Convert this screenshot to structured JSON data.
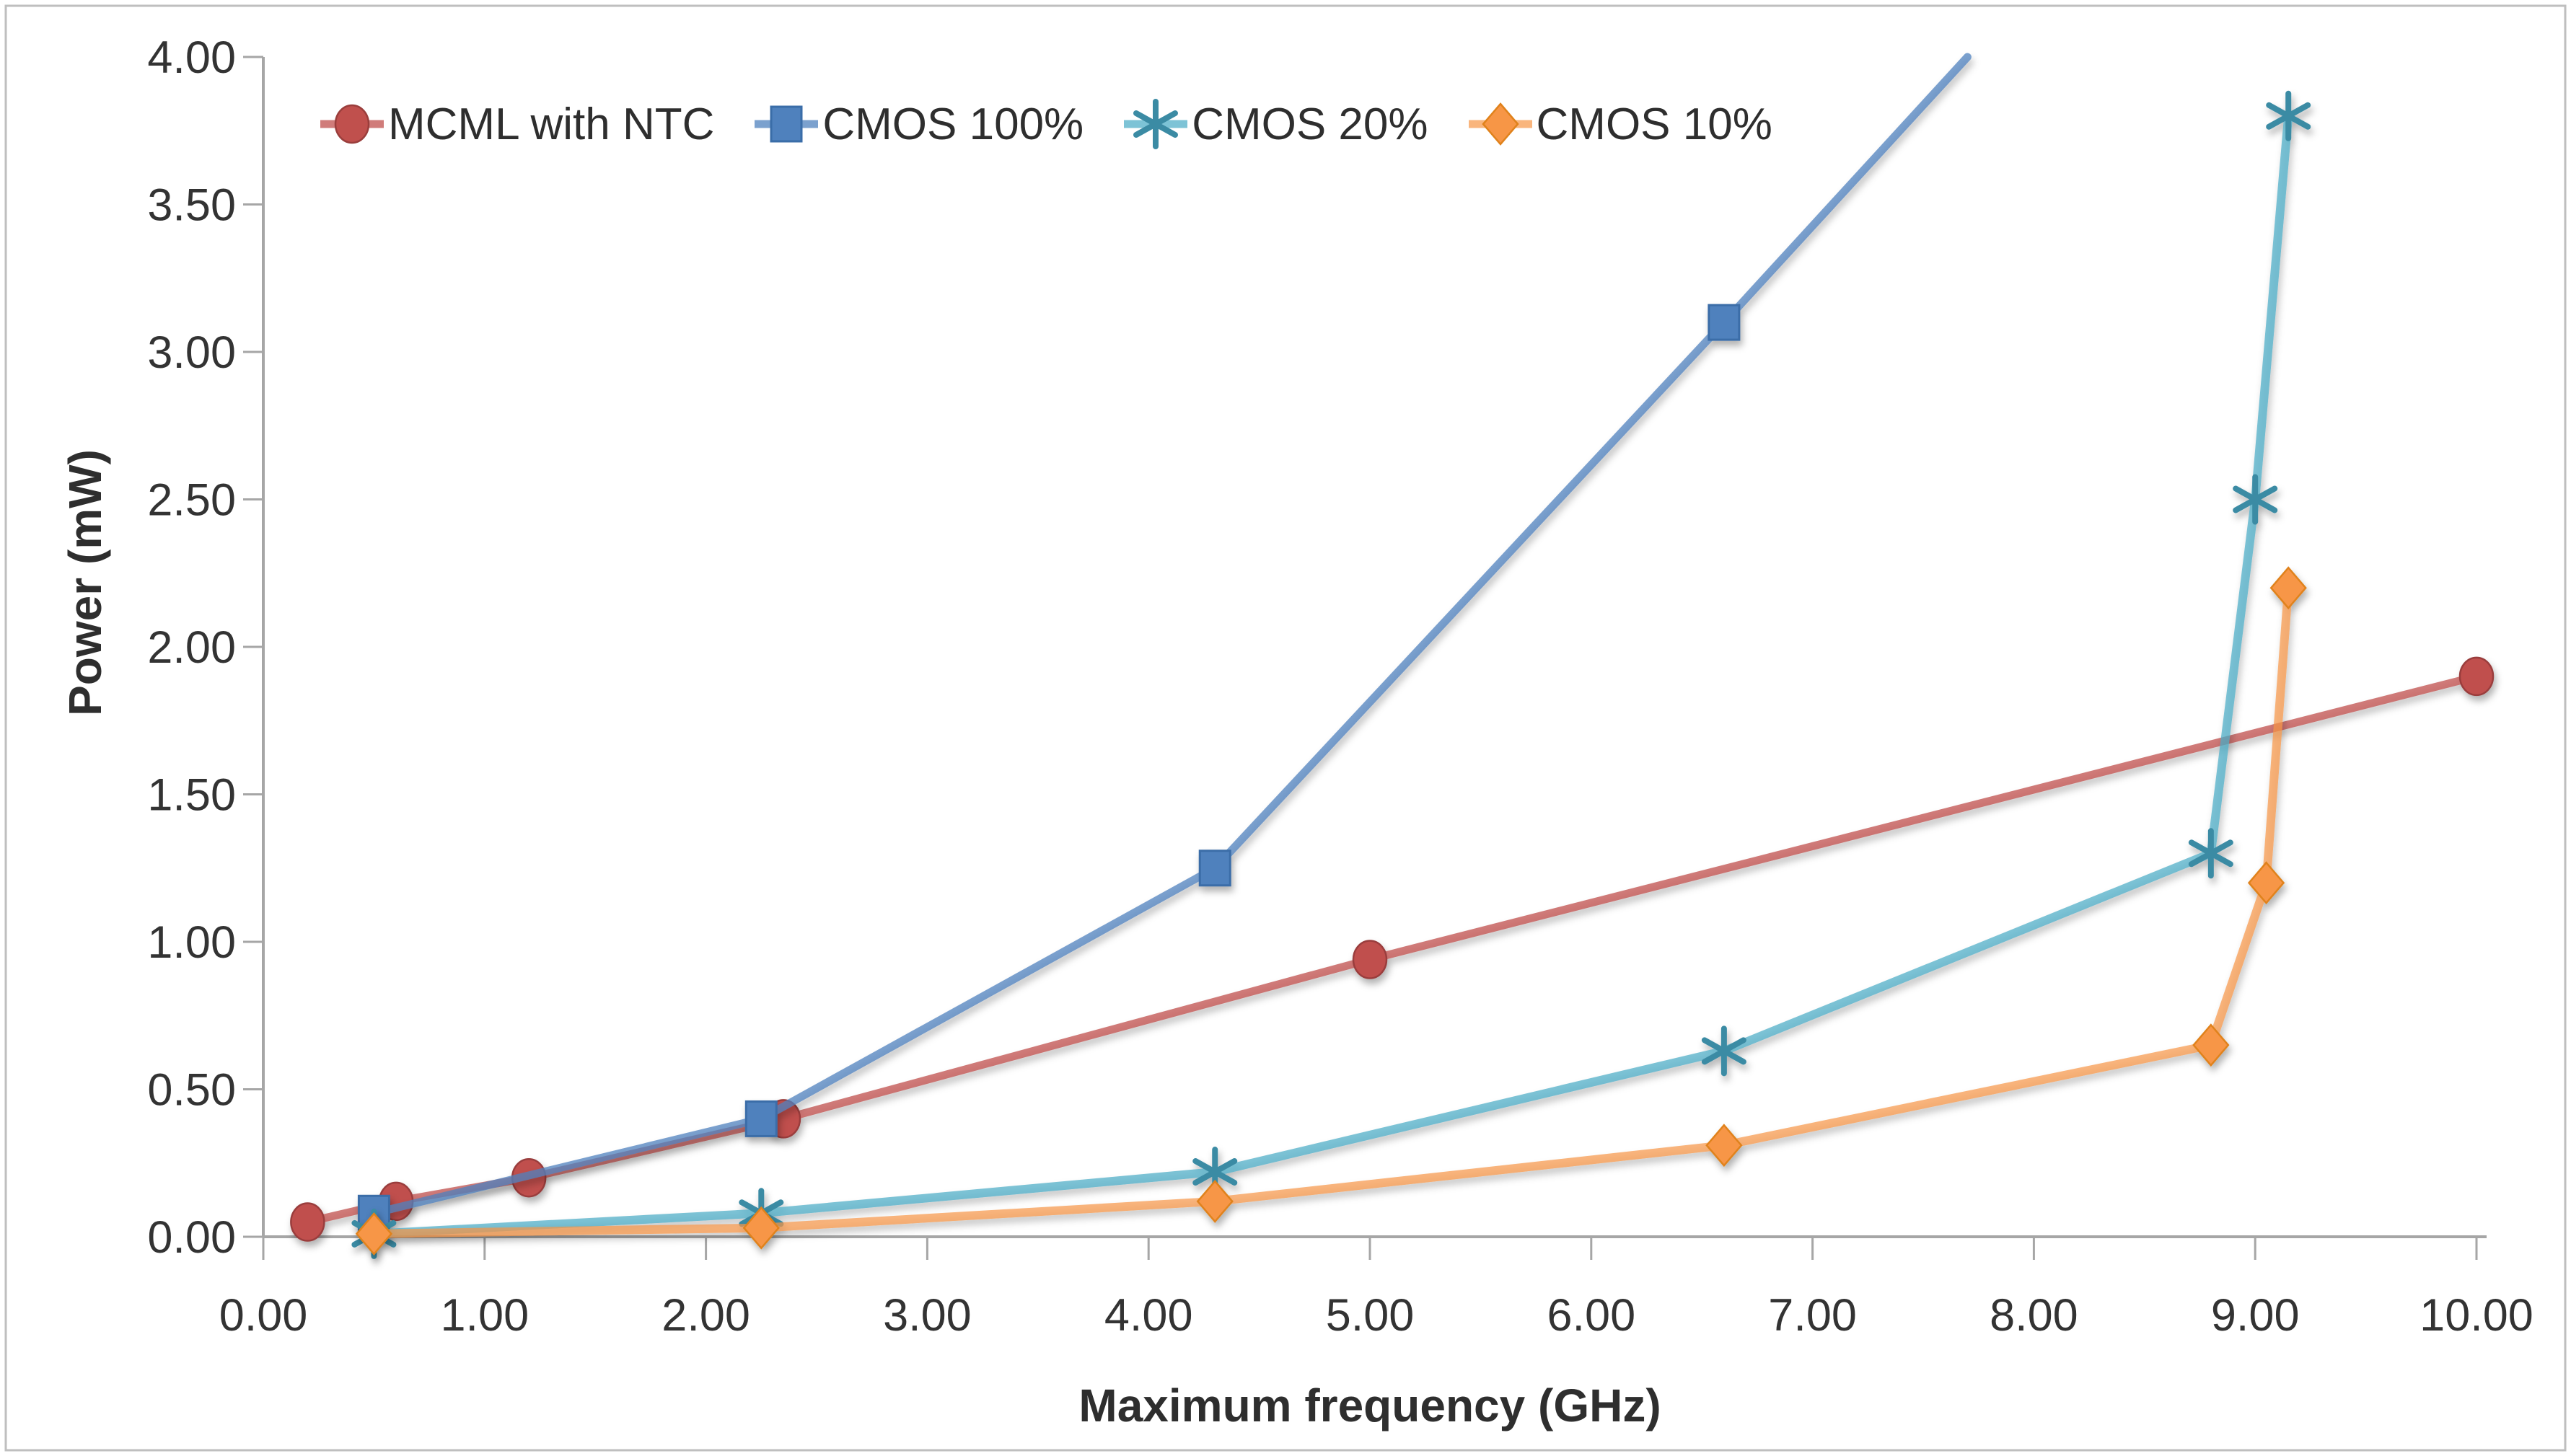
{
  "chart_data": {
    "type": "line",
    "title": "",
    "xlabel": "Maximum frequency (GHz)",
    "ylabel": "Power (mW)",
    "xlim": [
      0,
      10
    ],
    "ylim": [
      0,
      4
    ],
    "grid": false,
    "legend_position": "top",
    "x_ticks": {
      "values": [
        0,
        1,
        2,
        3,
        4,
        5,
        6,
        7,
        8,
        9,
        10
      ],
      "labels": [
        "0.00",
        "1.00",
        "2.00",
        "3.00",
        "4.00",
        "5.00",
        "6.00",
        "7.00",
        "8.00",
        "9.00",
        "10.00"
      ]
    },
    "y_ticks": {
      "values": [
        0,
        0.5,
        1,
        1.5,
        2,
        2.5,
        3,
        3.5,
        4
      ],
      "labels": [
        "0.00",
        "0.50",
        "1.00",
        "1.50",
        "2.00",
        "2.50",
        "3.00",
        "3.50",
        "4.00"
      ]
    },
    "series": [
      {
        "name": "MCML with NTC",
        "marker": "circle",
        "color": "#C0504D",
        "edge": "#9A3E3C",
        "line_opacity": 0.75,
        "line_width": 11,
        "points": [
          [
            0.2,
            0.05
          ],
          [
            0.6,
            0.12
          ],
          [
            1.2,
            0.2
          ],
          [
            2.35,
            0.4
          ],
          [
            5.0,
            0.94
          ],
          [
            10.0,
            1.9
          ]
        ]
      },
      {
        "name": "CMOS 100%",
        "marker": "square",
        "color": "#4F81BD",
        "edge": "#3A6DA8",
        "line_opacity": 0.75,
        "line_width": 11,
        "points": [
          [
            0.5,
            0.08
          ],
          [
            2.25,
            0.4
          ],
          [
            4.3,
            1.25
          ],
          [
            6.6,
            3.1
          ]
        ],
        "line_extension": [
          7.7,
          4.0
        ]
      },
      {
        "name": "CMOS 20%",
        "marker": "asterisk",
        "color": "#4BACC6",
        "edge": "#3B8BA4",
        "line_opacity": 0.72,
        "line_width": 12,
        "points": [
          [
            0.5,
            0.01
          ],
          [
            2.25,
            0.08
          ],
          [
            4.3,
            0.22
          ],
          [
            6.6,
            0.63
          ],
          [
            8.8,
            1.3
          ],
          [
            9.0,
            2.5
          ],
          [
            9.15,
            3.8
          ]
        ]
      },
      {
        "name": "CMOS 10%",
        "marker": "diamond",
        "color": "#F79646",
        "edge": "#E0821B",
        "line_opacity": 0.7,
        "line_width": 12,
        "points": [
          [
            0.5,
            0.01
          ],
          [
            2.25,
            0.03
          ],
          [
            4.3,
            0.12
          ],
          [
            6.6,
            0.31
          ],
          [
            8.8,
            0.65
          ],
          [
            9.05,
            1.2
          ],
          [
            9.15,
            2.2
          ]
        ]
      }
    ],
    "colors": {
      "axis": "#A6A6A6",
      "tick_text": "#333333",
      "title_text": "#2e2e2e",
      "border": "#BFBFBF",
      "background": "#FFFFFF"
    }
  }
}
